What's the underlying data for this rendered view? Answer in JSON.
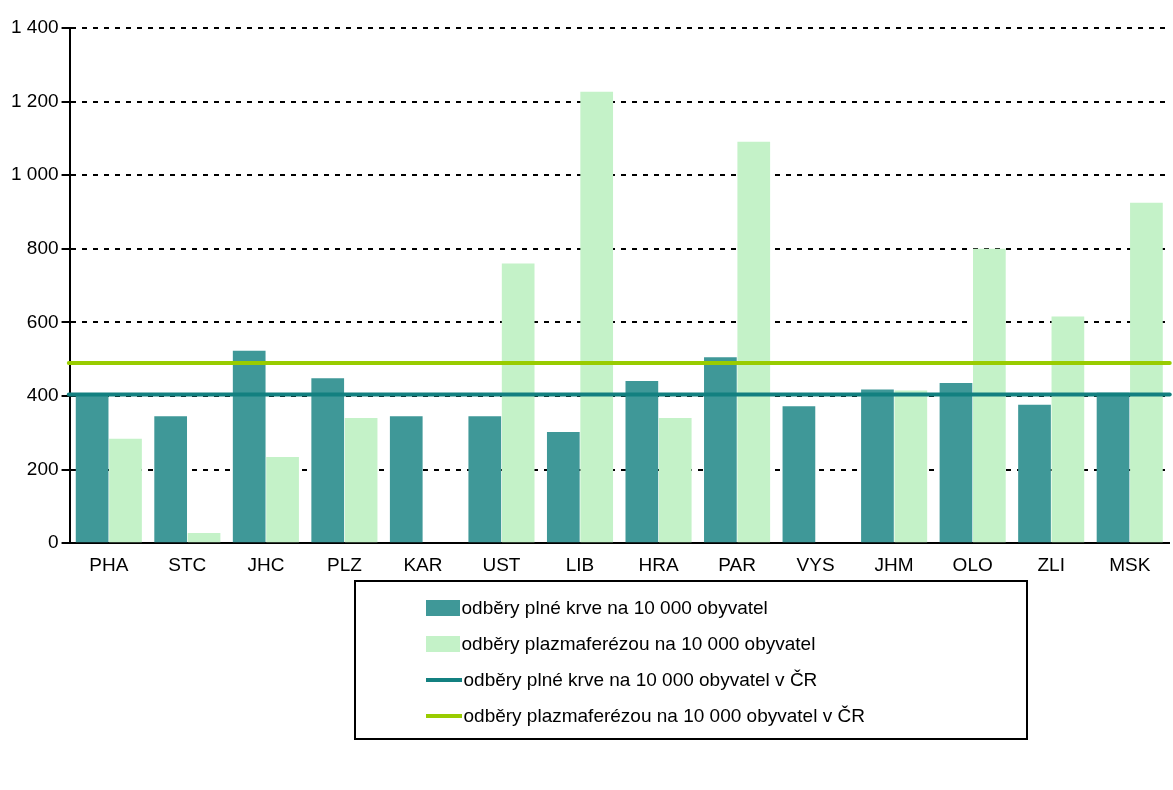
{
  "chart_data": {
    "type": "bar",
    "categories": [
      "PHA",
      "STC",
      "JHC",
      "PLZ",
      "KAR",
      "UST",
      "LIB",
      "HRA",
      "PAR",
      "VYS",
      "JHM",
      "OLO",
      "ZLI",
      "MSK"
    ],
    "series": [
      {
        "name": "odběry plné krve na 10 000 obyvatel",
        "color": "#3f9898",
        "values": [
          406,
          345,
          523,
          448,
          345,
          345,
          302,
          441,
          505,
          372,
          418,
          435,
          376,
          409
        ]
      },
      {
        "name": "odběry plazmaferézou na 10 000 obyvatel",
        "color": "#c4f2c8",
        "values": [
          284,
          28,
          234,
          340,
          null,
          760,
          1227,
          340,
          1091,
          null,
          415,
          800,
          616,
          925
        ]
      }
    ],
    "ref_lines": [
      {
        "axis": "y",
        "value": 404,
        "label": "odběry plné krve na 10 000 obyvatel v ČR",
        "color": "#138080"
      },
      {
        "axis": "y",
        "value": 490,
        "label": "odběry plazmaferézou na 10 000 obyvatel v ČR",
        "color": "#99cc00"
      }
    ],
    "ylim": [
      0,
      1400
    ],
    "yticks": [
      0,
      200,
      400,
      600,
      800,
      {
        "value": 1000,
        "label": "1 000"
      },
      {
        "value": 1200,
        "label": "1 200"
      },
      {
        "value": 1400,
        "label": "1 400"
      }
    ],
    "grid": "y",
    "legend": "bottom"
  }
}
